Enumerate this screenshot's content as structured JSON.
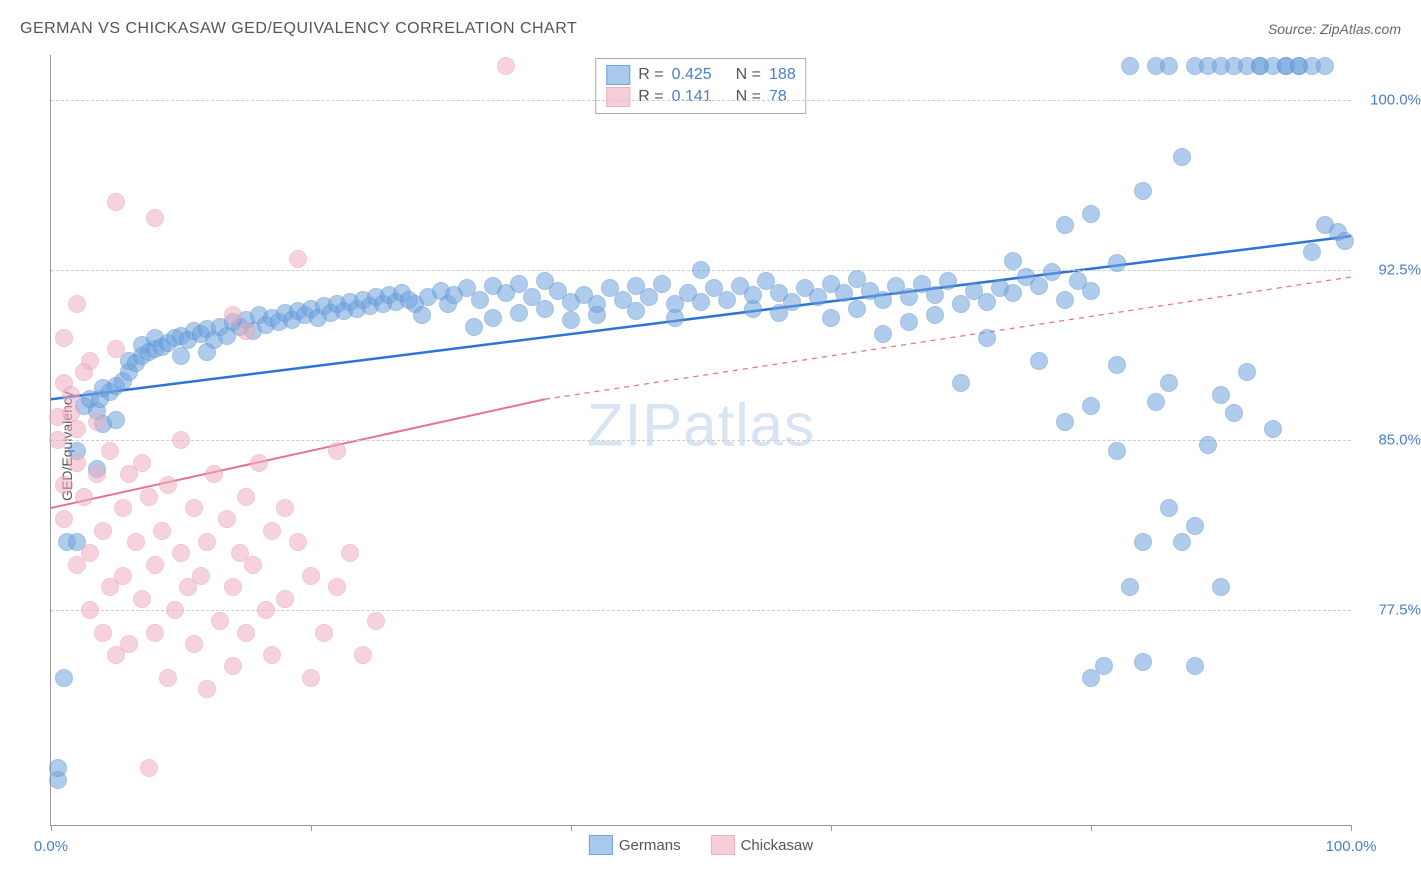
{
  "header": {
    "title": "GERMAN VS CHICKASAW GED/EQUIVALENCY CORRELATION CHART",
    "source": "Source: ZipAtlas.com"
  },
  "watermark": {
    "zip": "ZIP",
    "atlas": "atlas"
  },
  "chart": {
    "type": "scatter",
    "ylabel": "GED/Equivalency",
    "xlim": [
      0,
      100
    ],
    "ylim": [
      68,
      102
    ],
    "x_ticks": [
      0,
      20,
      40,
      60,
      80,
      100
    ],
    "x_tick_labels": [
      "0.0%",
      "",
      "",
      "",
      "",
      "100.0%"
    ],
    "y_gridlines": [
      77.5,
      85.0,
      92.5,
      100.0
    ],
    "y_tick_labels": [
      "77.5%",
      "85.0%",
      "92.5%",
      "100.0%"
    ],
    "background_color": "#ffffff",
    "grid_color": "#cccccc",
    "axis_color": "#999999",
    "tick_label_color": "#4a7ec9",
    "point_radius": 8,
    "point_opacity": 0.55,
    "series": [
      {
        "name": "Germans",
        "color": "#6fa3e0",
        "stroke": "#5a8fc9",
        "trend_color": "#2d74d6",
        "trend_style": "solid",
        "trend_width": 2.5,
        "trend": {
          "x1": 0,
          "y1": 86.8,
          "x2": 100,
          "y2": 94.0
        },
        "r": "0.425",
        "n": "188",
        "points": [
          [
            0.5,
            70.0
          ],
          [
            0.5,
            70.5
          ],
          [
            1,
            74.5
          ],
          [
            1.2,
            80.5
          ],
          [
            2,
            84.5
          ],
          [
            2,
            80.5
          ],
          [
            2.5,
            86.5
          ],
          [
            3,
            86.8
          ],
          [
            3.5,
            86.3
          ],
          [
            3.5,
            83.7
          ],
          [
            3.8,
            86.8
          ],
          [
            4,
            87.3
          ],
          [
            4,
            85.7
          ],
          [
            4.5,
            87.1
          ],
          [
            5,
            87.4
          ],
          [
            5,
            85.9
          ],
          [
            5.5,
            87.6
          ],
          [
            6,
            88.0
          ],
          [
            6,
            88.5
          ],
          [
            6.5,
            88.4
          ],
          [
            7,
            88.7
          ],
          [
            7,
            89.2
          ],
          [
            7.5,
            88.9
          ],
          [
            8,
            89.0
          ],
          [
            8,
            89.5
          ],
          [
            8.5,
            89.1
          ],
          [
            9,
            89.3
          ],
          [
            9.5,
            89.5
          ],
          [
            10,
            89.6
          ],
          [
            10,
            88.7
          ],
          [
            10.5,
            89.4
          ],
          [
            11,
            89.8
          ],
          [
            11.5,
            89.7
          ],
          [
            12,
            88.9
          ],
          [
            12,
            89.9
          ],
          [
            12.5,
            89.4
          ],
          [
            13,
            90.0
          ],
          [
            13.5,
            89.6
          ],
          [
            14,
            90.2
          ],
          [
            14.5,
            90.0
          ],
          [
            15,
            90.3
          ],
          [
            15.5,
            89.8
          ],
          [
            16,
            90.5
          ],
          [
            16.5,
            90.1
          ],
          [
            17,
            90.4
          ],
          [
            17.5,
            90.2
          ],
          [
            18,
            90.6
          ],
          [
            18.5,
            90.3
          ],
          [
            19,
            90.7
          ],
          [
            19.5,
            90.5
          ],
          [
            20,
            90.8
          ],
          [
            20.5,
            90.4
          ],
          [
            21,
            90.9
          ],
          [
            21.5,
            90.6
          ],
          [
            22,
            91.0
          ],
          [
            22.5,
            90.7
          ],
          [
            23,
            91.1
          ],
          [
            23.5,
            90.8
          ],
          [
            24,
            91.2
          ],
          [
            24.5,
            90.9
          ],
          [
            25,
            91.3
          ],
          [
            25.5,
            91.0
          ],
          [
            26,
            91.4
          ],
          [
            26.5,
            91.1
          ],
          [
            27,
            91.5
          ],
          [
            27.5,
            91.2
          ],
          [
            28,
            91.0
          ],
          [
            28.5,
            90.5
          ],
          [
            29,
            91.3
          ],
          [
            30,
            91.6
          ],
          [
            30.5,
            91.0
          ],
          [
            31,
            91.4
          ],
          [
            32,
            91.7
          ],
          [
            32.5,
            90.0
          ],
          [
            33,
            91.2
          ],
          [
            34,
            91.8
          ],
          [
            34,
            90.4
          ],
          [
            35,
            91.5
          ],
          [
            36,
            91.9
          ],
          [
            36,
            90.6
          ],
          [
            37,
            91.3
          ],
          [
            38,
            92.0
          ],
          [
            38,
            90.8
          ],
          [
            39,
            91.6
          ],
          [
            40,
            91.1
          ],
          [
            40,
            90.3
          ],
          [
            41,
            91.4
          ],
          [
            42,
            91.0
          ],
          [
            42,
            90.5
          ],
          [
            43,
            91.7
          ],
          [
            44,
            91.2
          ],
          [
            45,
            91.8
          ],
          [
            45,
            90.7
          ],
          [
            46,
            91.3
          ],
          [
            47,
            91.9
          ],
          [
            48,
            91.0
          ],
          [
            48,
            90.4
          ],
          [
            49,
            91.5
          ],
          [
            50,
            91.1
          ],
          [
            50,
            92.5
          ],
          [
            51,
            91.7
          ],
          [
            52,
            91.2
          ],
          [
            53,
            91.8
          ],
          [
            54,
            90.8
          ],
          [
            54,
            91.4
          ],
          [
            55,
            92.0
          ],
          [
            56,
            91.5
          ],
          [
            56,
            90.6
          ],
          [
            57,
            91.1
          ],
          [
            58,
            91.7
          ],
          [
            59,
            91.3
          ],
          [
            60,
            91.9
          ],
          [
            60,
            90.4
          ],
          [
            61,
            91.5
          ],
          [
            62,
            92.1
          ],
          [
            62,
            90.8
          ],
          [
            63,
            91.6
          ],
          [
            64,
            91.2
          ],
          [
            64,
            89.7
          ],
          [
            65,
            91.8
          ],
          [
            66,
            91.3
          ],
          [
            66,
            90.2
          ],
          [
            67,
            91.9
          ],
          [
            68,
            91.4
          ],
          [
            68,
            90.5
          ],
          [
            69,
            92.0
          ],
          [
            70,
            87.5
          ],
          [
            70,
            91.0
          ],
          [
            71,
            91.6
          ],
          [
            72,
            91.1
          ],
          [
            72,
            89.5
          ],
          [
            73,
            91.7
          ],
          [
            74,
            92.9
          ],
          [
            74,
            91.5
          ],
          [
            75,
            92.2
          ],
          [
            76,
            88.5
          ],
          [
            76,
            91.8
          ],
          [
            77,
            92.4
          ],
          [
            78,
            91.2
          ],
          [
            78,
            94.5
          ],
          [
            79,
            92.0
          ],
          [
            80,
            95.0
          ],
          [
            80,
            74.5
          ],
          [
            80,
            91.6
          ],
          [
            81,
            75.0
          ],
          [
            82,
            92.8
          ],
          [
            82,
            88.3
          ],
          [
            83,
            78.5
          ],
          [
            83,
            101.5
          ],
          [
            84,
            75.2
          ],
          [
            84,
            96.0
          ],
          [
            85,
            86.7
          ],
          [
            85,
            101.5
          ],
          [
            86,
            87.5
          ],
          [
            86,
            101.5
          ],
          [
            87,
            80.5
          ],
          [
            87,
            97.5
          ],
          [
            88,
            75.0
          ],
          [
            88,
            101.5
          ],
          [
            89,
            84.8
          ],
          [
            89,
            101.5
          ],
          [
            90,
            87.0
          ],
          [
            90,
            101.5
          ],
          [
            91,
            101.5
          ],
          [
            91,
            86.2
          ],
          [
            92,
            101.5
          ],
          [
            92,
            88.0
          ],
          [
            93,
            101.5
          ],
          [
            93,
            101.5
          ],
          [
            94,
            101.5
          ],
          [
            94,
            85.5
          ],
          [
            95,
            101.5
          ],
          [
            95,
            101.5
          ],
          [
            96,
            101.5
          ],
          [
            96,
            101.5
          ],
          [
            97,
            101.5
          ],
          [
            97,
            93.3
          ],
          [
            98,
            101.5
          ],
          [
            98,
            94.5
          ],
          [
            99,
            94.2
          ],
          [
            99.5,
            93.8
          ],
          [
            80,
            86.5
          ],
          [
            82,
            84.5
          ],
          [
            84,
            80.5
          ],
          [
            86,
            82.0
          ],
          [
            88,
            81.2
          ],
          [
            78,
            85.8
          ],
          [
            90,
            78.5
          ]
        ]
      },
      {
        "name": "Chickasaw",
        "color": "#f0b0c0",
        "stroke": "#e89ab0",
        "trend_color": "#e57390",
        "trend_style": "solid",
        "trend_width": 2,
        "trend": {
          "x1": 0,
          "y1": 82.0,
          "x2": 38,
          "y2": 86.8
        },
        "trend_ext_style": "dashed",
        "trend_ext": {
          "x1": 38,
          "y1": 86.8,
          "x2": 100,
          "y2": 92.2
        },
        "r": "0.141",
        "n": "78",
        "points": [
          [
            0.5,
            86.0
          ],
          [
            0.5,
            85.0
          ],
          [
            1,
            87.5
          ],
          [
            1,
            83.0
          ],
          [
            1,
            81.5
          ],
          [
            1.5,
            87.0
          ],
          [
            1.5,
            86.2
          ],
          [
            2,
            79.5
          ],
          [
            2,
            85.5
          ],
          [
            2,
            84.0
          ],
          [
            2.5,
            88.0
          ],
          [
            2.5,
            82.5
          ],
          [
            3,
            80.0
          ],
          [
            3,
            77.5
          ],
          [
            3.5,
            85.8
          ],
          [
            3.5,
            83.5
          ],
          [
            4,
            76.5
          ],
          [
            4,
            81.0
          ],
          [
            4.5,
            78.5
          ],
          [
            4.5,
            84.5
          ],
          [
            5,
            89.0
          ],
          [
            5,
            75.5
          ],
          [
            5.5,
            82.0
          ],
          [
            5.5,
            79.0
          ],
          [
            6,
            76.0
          ],
          [
            6,
            83.5
          ],
          [
            6.5,
            80.5
          ],
          [
            7,
            78.0
          ],
          [
            7,
            84.0
          ],
          [
            7.5,
            70.5
          ],
          [
            7.5,
            82.5
          ],
          [
            8,
            76.5
          ],
          [
            8,
            79.5
          ],
          [
            8.5,
            81.0
          ],
          [
            9,
            74.5
          ],
          [
            9,
            83.0
          ],
          [
            9.5,
            77.5
          ],
          [
            10,
            85.0
          ],
          [
            10,
            80.0
          ],
          [
            10.5,
            78.5
          ],
          [
            11,
            76.0
          ],
          [
            11,
            82.0
          ],
          [
            11.5,
            79.0
          ],
          [
            12,
            74.0
          ],
          [
            12,
            80.5
          ],
          [
            12.5,
            83.5
          ],
          [
            13,
            77.0
          ],
          [
            13.5,
            81.5
          ],
          [
            14,
            78.5
          ],
          [
            14,
            75.0
          ],
          [
            14.5,
            80.0
          ],
          [
            15,
            82.5
          ],
          [
            15,
            76.5
          ],
          [
            15.5,
            79.5
          ],
          [
            16,
            84.0
          ],
          [
            16.5,
            77.5
          ],
          [
            17,
            81.0
          ],
          [
            17,
            75.5
          ],
          [
            18,
            78.0
          ],
          [
            18,
            82.0
          ],
          [
            19,
            80.5
          ],
          [
            20,
            79.0
          ],
          [
            20,
            74.5
          ],
          [
            21,
            76.5
          ],
          [
            22,
            78.5
          ],
          [
            23,
            80.0
          ],
          [
            24,
            75.5
          ],
          [
            25,
            77.0
          ],
          [
            5,
            95.5
          ],
          [
            8,
            94.8
          ],
          [
            1,
            89.5
          ],
          [
            2,
            91.0
          ],
          [
            3,
            88.5
          ],
          [
            15,
            89.8
          ],
          [
            19,
            93.0
          ],
          [
            14,
            90.5
          ],
          [
            22,
            84.5
          ],
          [
            35,
            101.5
          ]
        ]
      }
    ],
    "legend_top": {
      "r_label": "R =",
      "n_label": "N ="
    },
    "legend_bottom": {
      "items": [
        "Germans",
        "Chickasaw"
      ]
    }
  }
}
